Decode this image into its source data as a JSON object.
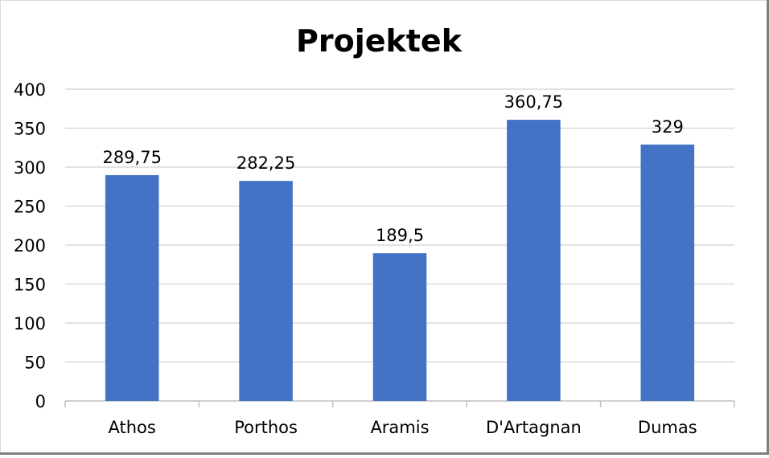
{
  "chart_data": {
    "type": "bar",
    "title": "Projektek",
    "categories": [
      "Athos",
      "Porthos",
      "Aramis",
      "D'Artagnan",
      "Dumas"
    ],
    "values": [
      289.75,
      282.25,
      189.5,
      360.75,
      329
    ],
    "data_labels": [
      "289,75",
      "282,25",
      "189,5",
      "360,75",
      "329"
    ],
    "ylim": [
      0,
      400
    ],
    "yticks": [
      0,
      50,
      100,
      150,
      200,
      250,
      300,
      350,
      400
    ],
    "grid": true,
    "legend": "none",
    "colors": {
      "bar": "#4472c4",
      "grid": "#d9d9d9",
      "axis": "#bfbfbf",
      "text": "#000000"
    }
  }
}
